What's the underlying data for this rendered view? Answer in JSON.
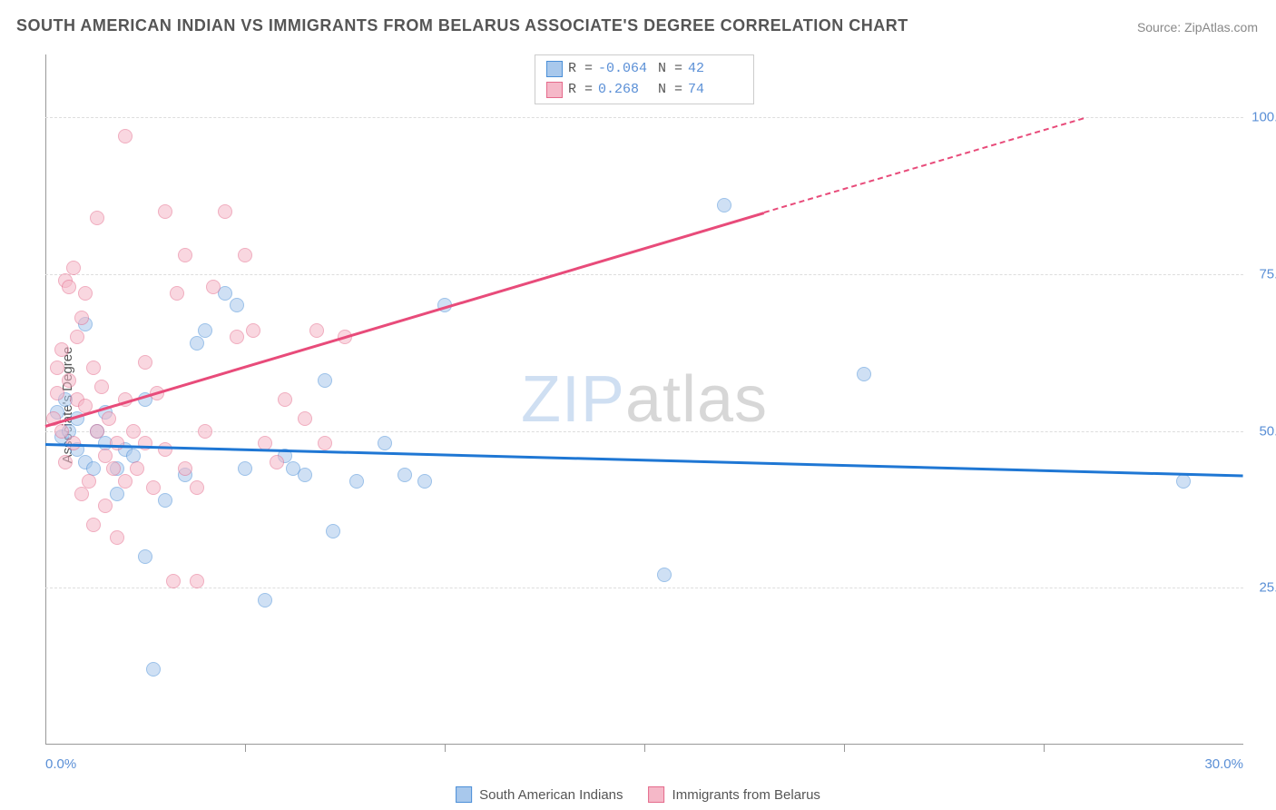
{
  "title": "SOUTH AMERICAN INDIAN VS IMMIGRANTS FROM BELARUS ASSOCIATE'S DEGREE CORRELATION CHART",
  "source": "Source: ZipAtlas.com",
  "y_axis_label": "Associate's Degree",
  "watermark_zip": "ZIP",
  "watermark_atlas": "atlas",
  "chart": {
    "type": "scatter",
    "background_color": "#ffffff",
    "grid_color": "#dddddd",
    "xlim": [
      0,
      30
    ],
    "ylim": [
      0,
      110
    ],
    "x_ticks": [
      0,
      5,
      10,
      15,
      20,
      25,
      30
    ],
    "x_tick_labels": {
      "0": "0.0%",
      "30": "30.0%"
    },
    "y_ticks": [
      25,
      50,
      75,
      100
    ],
    "y_tick_labels": {
      "25": "25.0%",
      "50": "50.0%",
      "75": "75.0%",
      "100": "100.0%"
    },
    "series": [
      {
        "name": "South American Indians",
        "fill_color": "#a8c8ec",
        "stroke_color": "#4b8fd8",
        "fill_opacity": 0.55,
        "trend_color": "#1f77d4",
        "trend": {
          "x1": 0,
          "y1": 48,
          "x2": 30,
          "y2": 43
        },
        "R": "-0.064",
        "N": "42",
        "points": [
          [
            0.3,
            53
          ],
          [
            0.4,
            49
          ],
          [
            0.5,
            55
          ],
          [
            0.6,
            50
          ],
          [
            0.8,
            47
          ],
          [
            0.8,
            52
          ],
          [
            1.0,
            45
          ],
          [
            1.0,
            67
          ],
          [
            1.2,
            44
          ],
          [
            1.3,
            50
          ],
          [
            1.5,
            53
          ],
          [
            1.5,
            48
          ],
          [
            1.8,
            44
          ],
          [
            1.8,
            40
          ],
          [
            2.0,
            47
          ],
          [
            2.2,
            46
          ],
          [
            2.5,
            55
          ],
          [
            2.5,
            30
          ],
          [
            2.7,
            12
          ],
          [
            3.0,
            39
          ],
          [
            3.5,
            43
          ],
          [
            3.8,
            64
          ],
          [
            4.0,
            66
          ],
          [
            4.5,
            72
          ],
          [
            4.8,
            70
          ],
          [
            5.0,
            44
          ],
          [
            5.5,
            23
          ],
          [
            6.0,
            46
          ],
          [
            6.2,
            44
          ],
          [
            6.5,
            43
          ],
          [
            7.0,
            58
          ],
          [
            7.2,
            34
          ],
          [
            7.8,
            42
          ],
          [
            8.5,
            48
          ],
          [
            9.0,
            43
          ],
          [
            9.5,
            42
          ],
          [
            10.0,
            70
          ],
          [
            15.5,
            27
          ],
          [
            17.0,
            86
          ],
          [
            20.5,
            59
          ],
          [
            28.5,
            42
          ]
        ]
      },
      {
        "name": "Immigrants from Belarus",
        "fill_color": "#f5b8c8",
        "stroke_color": "#e56b8c",
        "fill_opacity": 0.55,
        "trend_color": "#e84b7a",
        "trend": {
          "x1": 0,
          "y1": 51,
          "x2": 18,
          "y2": 85
        },
        "trend_dashed": {
          "x1": 18,
          "y1": 85,
          "x2": 26,
          "y2": 100
        },
        "R": "0.268",
        "N": "74",
        "points": [
          [
            0.2,
            52
          ],
          [
            0.3,
            60
          ],
          [
            0.3,
            56
          ],
          [
            0.4,
            50
          ],
          [
            0.4,
            63
          ],
          [
            0.5,
            74
          ],
          [
            0.5,
            45
          ],
          [
            0.6,
            58
          ],
          [
            0.6,
            73
          ],
          [
            0.7,
            76
          ],
          [
            0.7,
            48
          ],
          [
            0.8,
            55
          ],
          [
            0.8,
            65
          ],
          [
            0.9,
            40
          ],
          [
            0.9,
            68
          ],
          [
            1.0,
            54
          ],
          [
            1.0,
            72
          ],
          [
            1.1,
            42
          ],
          [
            1.2,
            60
          ],
          [
            1.2,
            35
          ],
          [
            1.3,
            50
          ],
          [
            1.3,
            84
          ],
          [
            1.4,
            57
          ],
          [
            1.5,
            46
          ],
          [
            1.5,
            38
          ],
          [
            1.6,
            52
          ],
          [
            1.7,
            44
          ],
          [
            1.8,
            48
          ],
          [
            1.8,
            33
          ],
          [
            2.0,
            97
          ],
          [
            2.0,
            42
          ],
          [
            2.0,
            55
          ],
          [
            2.2,
            50
          ],
          [
            2.3,
            44
          ],
          [
            2.5,
            48
          ],
          [
            2.5,
            61
          ],
          [
            2.7,
            41
          ],
          [
            2.8,
            56
          ],
          [
            3.0,
            85
          ],
          [
            3.0,
            47
          ],
          [
            3.2,
            26
          ],
          [
            3.3,
            72
          ],
          [
            3.5,
            78
          ],
          [
            3.5,
            44
          ],
          [
            3.8,
            41
          ],
          [
            3.8,
            26
          ],
          [
            4.0,
            50
          ],
          [
            4.2,
            73
          ],
          [
            4.5,
            85
          ],
          [
            4.8,
            65
          ],
          [
            5.0,
            78
          ],
          [
            5.2,
            66
          ],
          [
            5.5,
            48
          ],
          [
            5.8,
            45
          ],
          [
            6.0,
            55
          ],
          [
            6.5,
            52
          ],
          [
            6.8,
            66
          ],
          [
            7.0,
            48
          ],
          [
            7.5,
            65
          ]
        ]
      }
    ]
  },
  "stats_box": {
    "rows": [
      {
        "swatch_fill": "#a8c8ec",
        "swatch_border": "#4b8fd8",
        "R_label": "R =",
        "R": "-0.064",
        "N_label": "N =",
        "N": "42"
      },
      {
        "swatch_fill": "#f5b8c8",
        "swatch_border": "#e56b8c",
        "R_label": "R =",
        "R": " 0.268",
        "N_label": "N =",
        "N": "74"
      }
    ]
  },
  "bottom_legend": [
    {
      "swatch_fill": "#a8c8ec",
      "swatch_border": "#4b8fd8",
      "label": "South American Indians"
    },
    {
      "swatch_fill": "#f5b8c8",
      "swatch_border": "#e56b8c",
      "label": "Immigrants from Belarus"
    }
  ]
}
